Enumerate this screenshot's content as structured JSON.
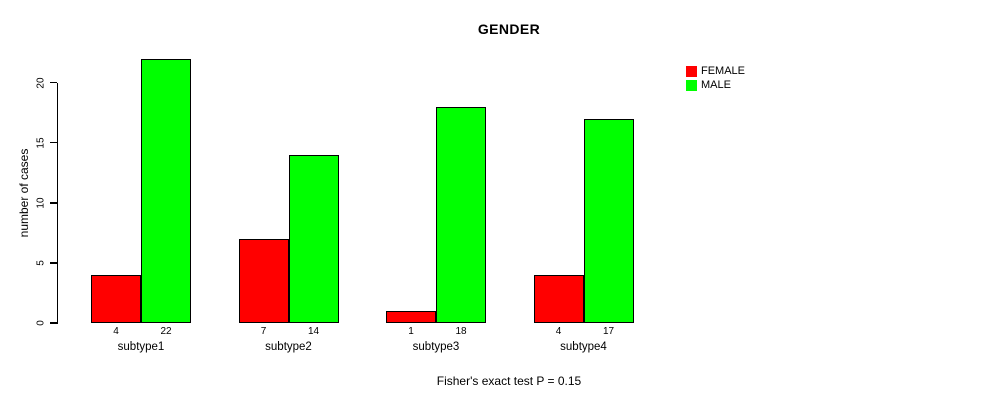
{
  "page": {
    "background": "#ffffff"
  },
  "chart_data": {
    "type": "bar",
    "title": "GENDER",
    "xlabel": "",
    "ylabel": "number of cases",
    "categories": [
      "subtype1",
      "subtype2",
      "subtype3",
      "subtype4"
    ],
    "series": [
      {
        "name": "FEMALE",
        "color": "#ff0000",
        "values": [
          4,
          7,
          1,
          4
        ]
      },
      {
        "name": "MALE",
        "color": "#00ff00",
        "values": [
          22,
          14,
          18,
          17
        ]
      }
    ],
    "value_labels_under_bars": [
      [
        4,
        22
      ],
      [
        7,
        14
      ],
      [
        1,
        18
      ],
      [
        4,
        17
      ]
    ],
    "yticks": [
      0,
      5,
      10,
      15,
      20
    ],
    "ylim": [
      0,
      22.5
    ],
    "grid": false,
    "legend": {
      "position": "top-right",
      "entries": [
        "FEMALE",
        "MALE"
      ]
    },
    "caption": "Fisher's exact test P = 0.15",
    "bar_border_color": "#000000",
    "axis_color": "#000000",
    "text_color": "#000000"
  }
}
